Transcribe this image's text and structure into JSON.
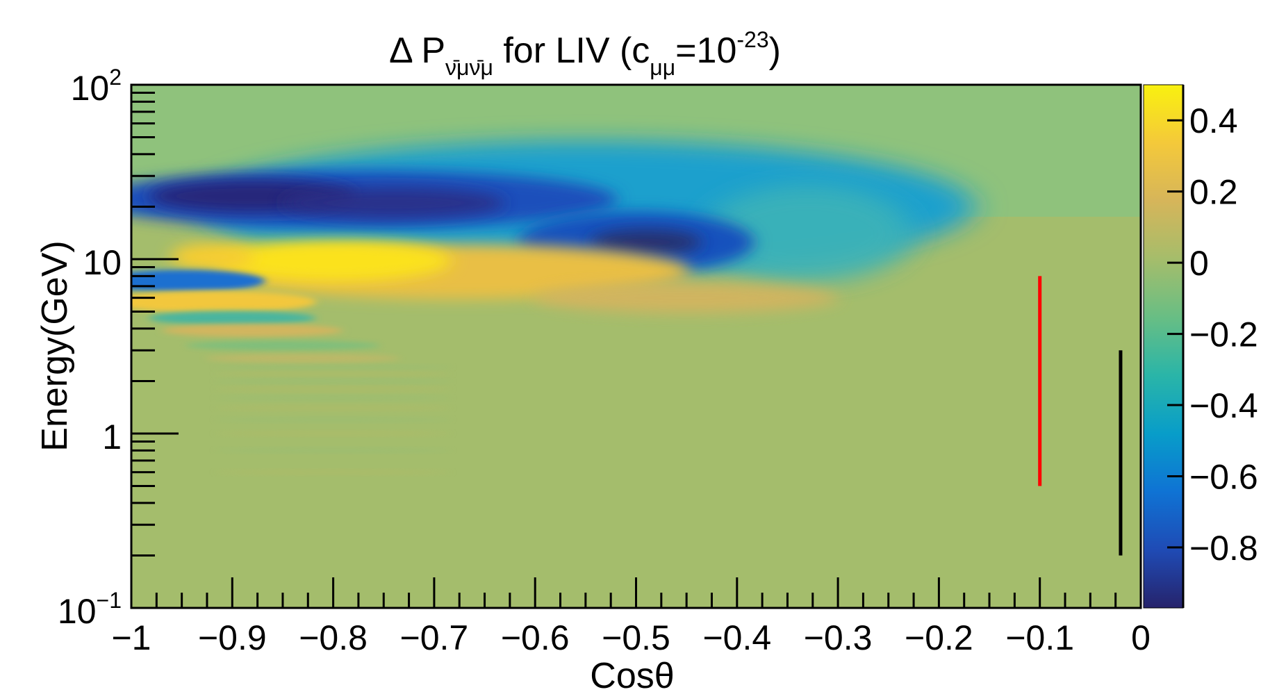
{
  "chart_data": {
    "type": "heatmap",
    "title": {
      "prefix": "Δ P",
      "subscript": "ν̄μν̄μ",
      "middle": " for LIV (c",
      "coeff_subscript": "μμ",
      "equals": "=10",
      "exponent": "-23",
      "suffix": ")"
    },
    "xlabel": "Cosθ",
    "ylabel": "Energy(GeV)",
    "xlim": [
      -1,
      0
    ],
    "ylim": [
      0.1,
      100
    ],
    "y_scale": "log",
    "x_ticks": [
      {
        "value": -1,
        "label": "−1"
      },
      {
        "value": -0.9,
        "label": "−0.9"
      },
      {
        "value": -0.8,
        "label": "−0.8"
      },
      {
        "value": -0.7,
        "label": "−0.7"
      },
      {
        "value": -0.6,
        "label": "−0.6"
      },
      {
        "value": -0.5,
        "label": "−0.5"
      },
      {
        "value": -0.4,
        "label": "−0.4"
      },
      {
        "value": -0.3,
        "label": "−0.3"
      },
      {
        "value": -0.2,
        "label": "−0.2"
      },
      {
        "value": -0.1,
        "label": "−0.1"
      },
      {
        "value": 0,
        "label": "0"
      }
    ],
    "y_ticks": [
      {
        "value": 0.1,
        "base": "10",
        "exp": "−1"
      },
      {
        "value": 1,
        "base": "1",
        "exp": ""
      },
      {
        "value": 10,
        "base": "10",
        "exp": ""
      },
      {
        "value": 100,
        "base": "10",
        "exp": "2"
      }
    ],
    "colorbar": {
      "zlim": [
        -0.97,
        0.5
      ],
      "ticks": [
        {
          "value": 0.4,
          "label": "0.4"
        },
        {
          "value": 0.2,
          "label": "0.2"
        },
        {
          "value": 0,
          "label": "0"
        },
        {
          "value": -0.2,
          "label": "−0.2"
        },
        {
          "value": -0.4,
          "label": "−0.4"
        },
        {
          "value": -0.6,
          "label": "−0.6"
        },
        {
          "value": -0.8,
          "label": "−0.8"
        }
      ],
      "palette": [
        "#26236b",
        "#1f4bb5",
        "#0f73d4",
        "#089dc9",
        "#2ab5a8",
        "#68be84",
        "#a5bd6b",
        "#d6b55a",
        "#f4c93a",
        "#f9f10f"
      ]
    },
    "features": [
      {
        "name": "min-band-upper",
        "x_range": [
          -1,
          -0.3
        ],
        "y_center": 22,
        "value": -0.9
      },
      {
        "name": "min-band-lower",
        "x_range": [
          -0.6,
          -0.4
        ],
        "y_center": 13,
        "value": -0.95
      },
      {
        "name": "max-band",
        "x_range": [
          -0.95,
          -0.65
        ],
        "y_center": 9.5,
        "value": 0.45
      },
      {
        "name": "secondary-max",
        "x_range": [
          -1,
          -0.85
        ],
        "y_center": 5.7,
        "value": 0.35
      }
    ],
    "markers": [
      {
        "name": "red-line",
        "x": -0.1,
        "y_range": [
          0.5,
          8
        ],
        "color": "#ff0000"
      },
      {
        "name": "black-line",
        "x": -0.02,
        "y_range": [
          0.2,
          3
        ],
        "color": "#000000"
      }
    ]
  }
}
